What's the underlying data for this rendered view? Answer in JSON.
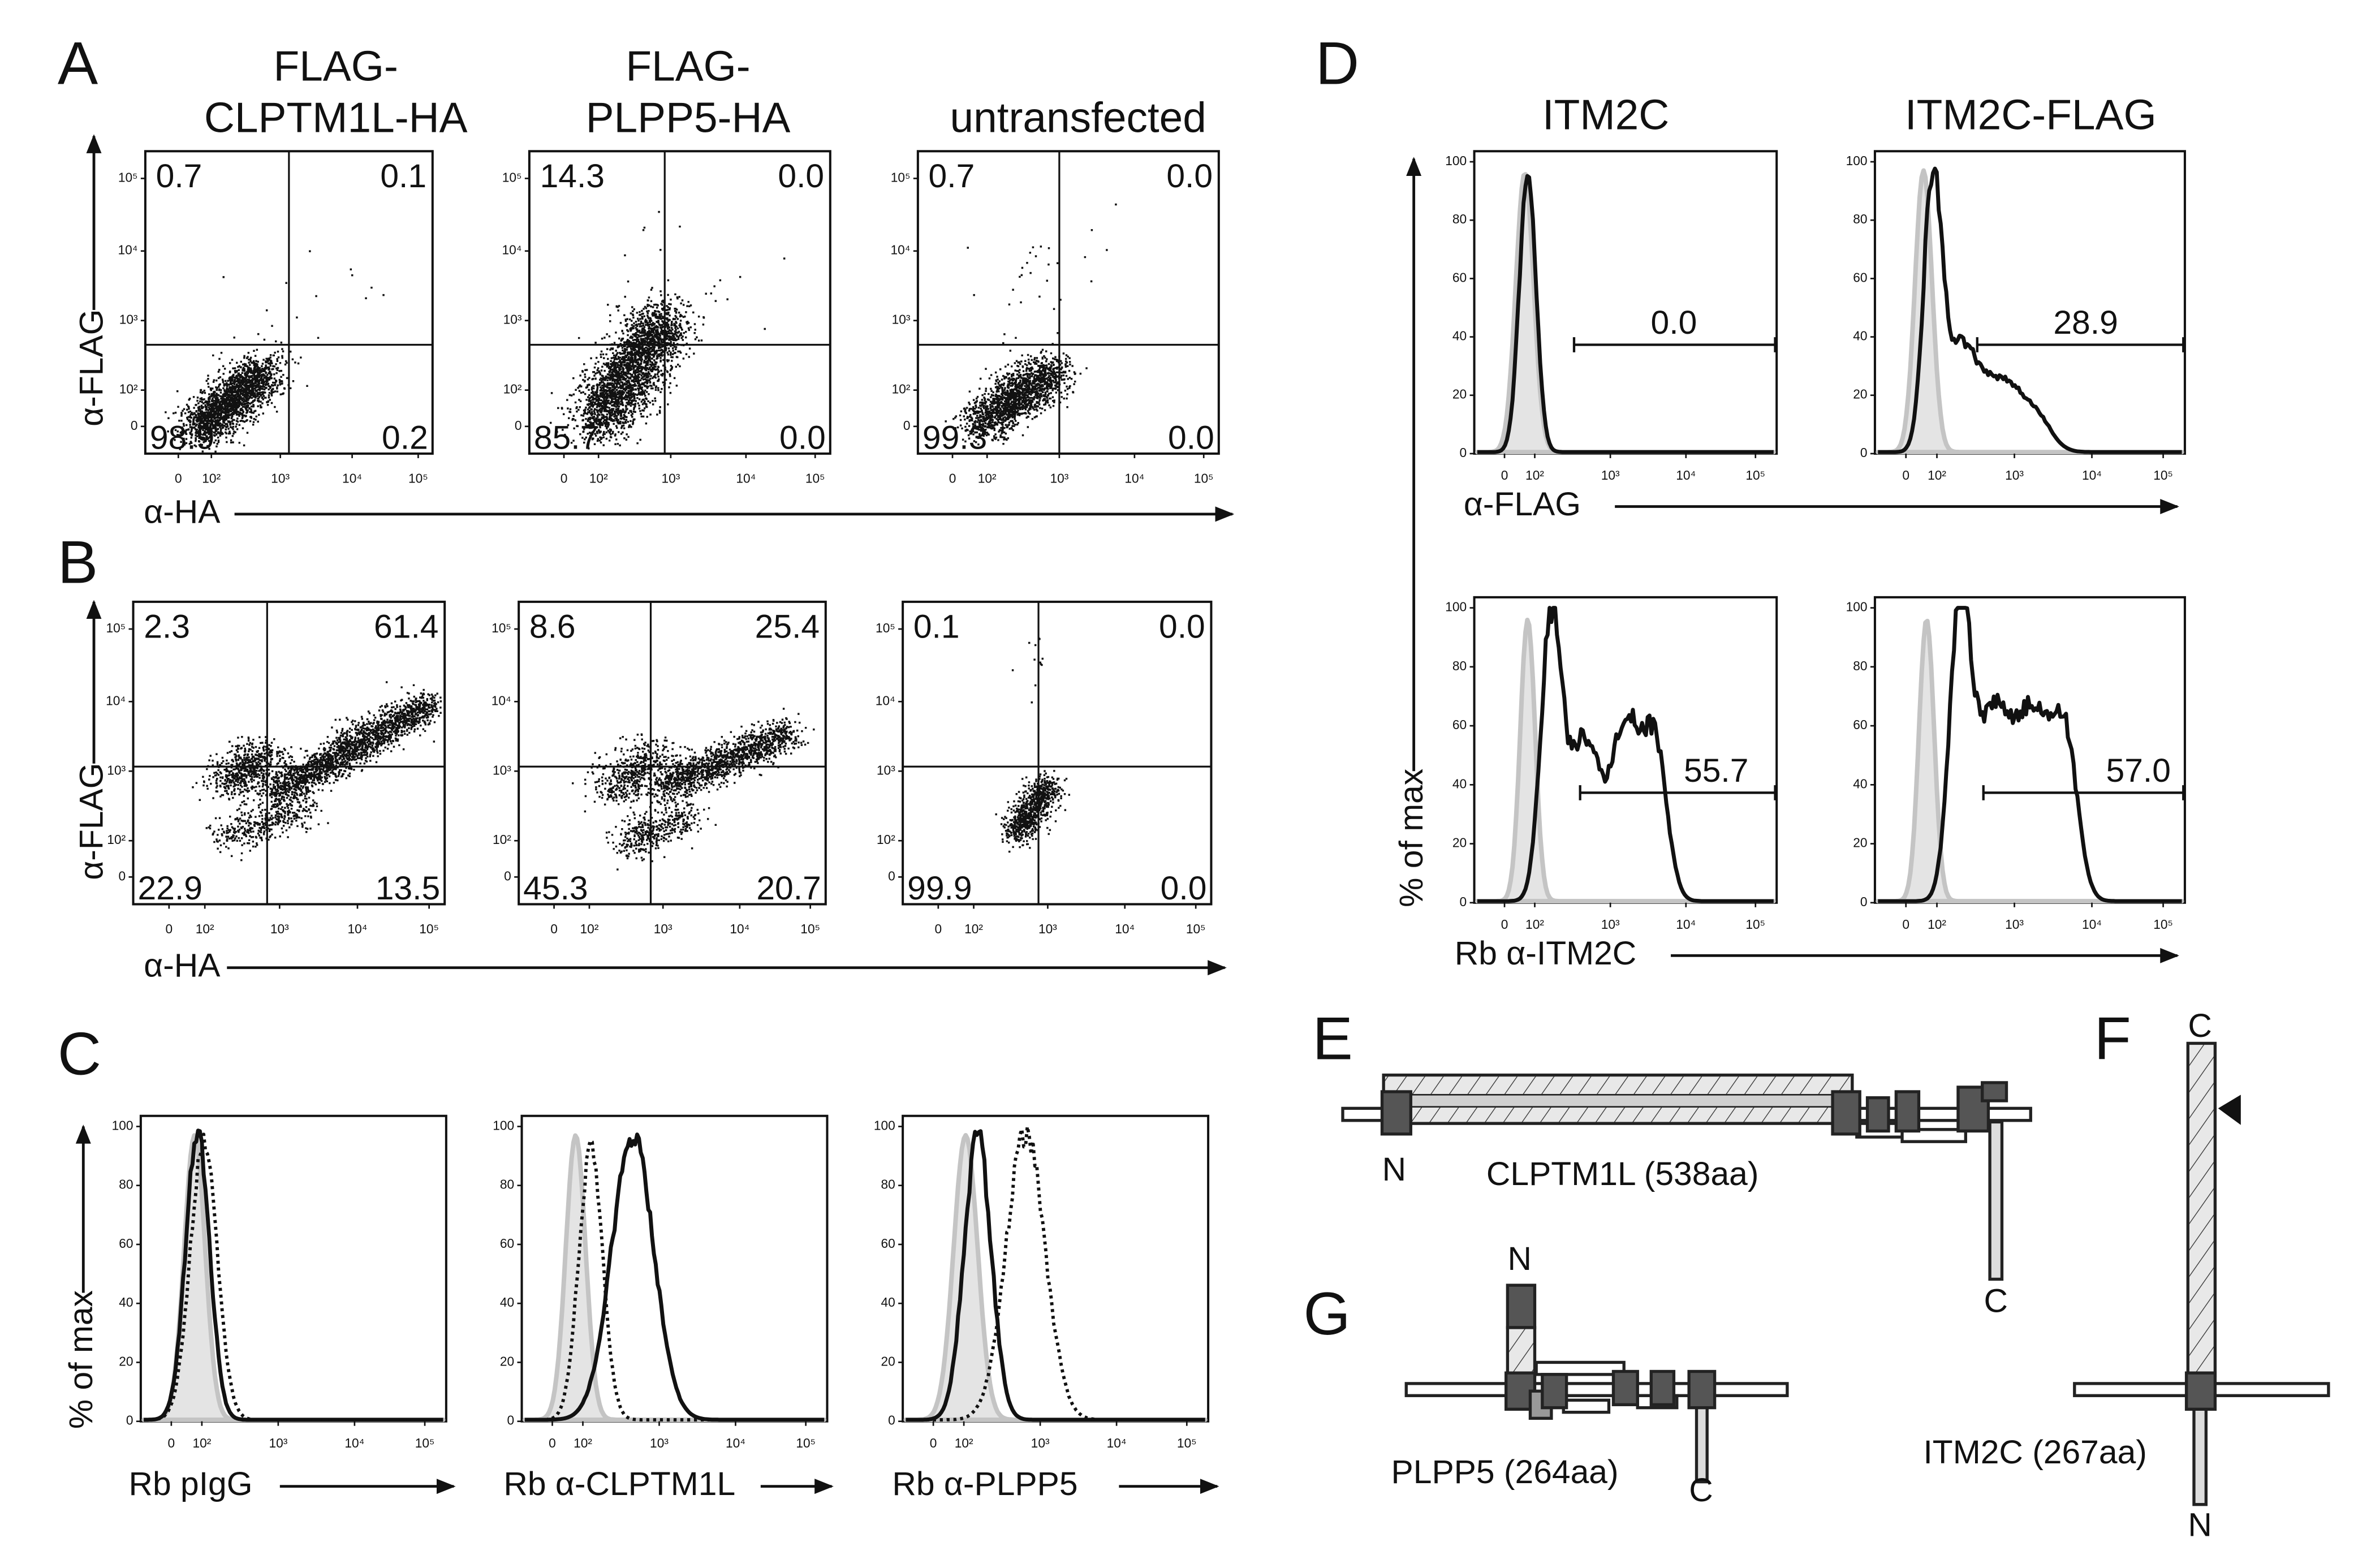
{
  "panel_labels": [
    "A",
    "B",
    "C",
    "D",
    "E",
    "F",
    "G"
  ],
  "log_ticks": [
    "0",
    "10²",
    "10³",
    "10⁴",
    "10⁵"
  ],
  "percent_ticks": [
    0,
    20,
    40,
    60,
    80,
    100
  ],
  "a": {
    "headers": [
      [
        "FLAG-",
        "CLPTM1L-HA"
      ],
      [
        "FLAG-",
        "PLPP5-HA"
      ],
      [
        "untransfected"
      ]
    ],
    "y_label": "α-FLAG",
    "x_label": "α-HA",
    "quadrants": [
      [
        "0.7",
        "0.1",
        "98.9",
        "0.2"
      ],
      [
        "14.3",
        "0.0",
        "85.7",
        "0.0"
      ],
      [
        "0.7",
        "0.0",
        "99.3",
        "0.0"
      ]
    ]
  },
  "b": {
    "y_label": "α-FLAG",
    "x_label": "α-HA",
    "quadrants": [
      [
        "2.3",
        "61.4",
        "22.9",
        "13.5"
      ],
      [
        "8.6",
        "25.4",
        "45.3",
        "20.7"
      ],
      [
        "0.1",
        "0.0",
        "99.9",
        "0.0"
      ]
    ]
  },
  "c": {
    "y_label": "% of max",
    "x_labels": [
      "Rb pIgG",
      "Rb α-CLPTM1L",
      "Rb α-PLPP5"
    ]
  },
  "d": {
    "headers": [
      "ITM2C",
      "ITM2C-FLAG"
    ],
    "y_label": "% of max",
    "x_labels": [
      "α-FLAG",
      "Rb α-ITM2C"
    ],
    "gates": [
      [
        "0.0",
        "28.9"
      ],
      [
        "55.7",
        "57.0"
      ]
    ]
  },
  "e": {
    "name": "CLPTM1L (538aa)",
    "termini": [
      "N",
      "C"
    ]
  },
  "f": {
    "name": "ITM2C (267aa)",
    "termini": [
      "C",
      "N"
    ]
  },
  "g": {
    "name": "PLPP5 (264aa)",
    "termini": [
      "N",
      "C"
    ]
  }
}
